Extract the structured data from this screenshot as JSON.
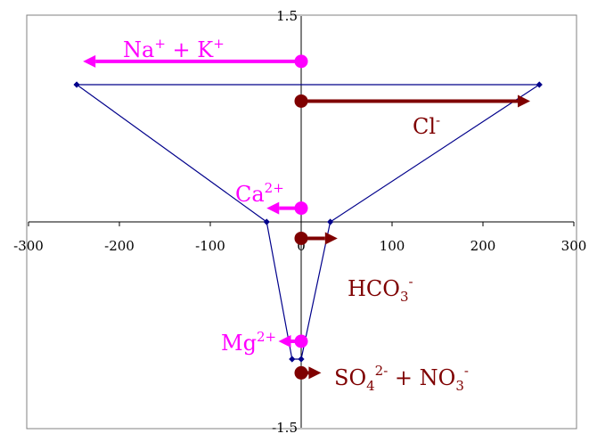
{
  "chart_data": {
    "type": "line",
    "title": "",
    "xlabel": "",
    "ylabel": "",
    "xlim": [
      -300,
      300
    ],
    "ylim": [
      -1.5,
      1.5
    ],
    "xticks": [
      "-300",
      "-200",
      "-100",
      "0",
      "100",
      "200",
      "300"
    ],
    "ytick_top": "1.5",
    "ytick_bottom": "-1.5",
    "grid": false,
    "polygon": {
      "color": "#00008B",
      "points": [
        {
          "x": -247,
          "y": 1.0
        },
        {
          "x": 262,
          "y": 1.0
        },
        {
          "x": 32,
          "y": 0.0
        },
        {
          "x": 0,
          "y": -1.0
        },
        {
          "x": -10,
          "y": -1.0
        },
        {
          "x": -38,
          "y": 0.0
        }
      ]
    },
    "cation_labels": [
      {
        "base": "Na",
        "sup": "+",
        "mid": " + K",
        "sup2": "+",
        "y": 1.17,
        "x_end": -240
      },
      {
        "base": "Ca",
        "sup": "2+",
        "mid": "",
        "sup2": "",
        "y": 0.1,
        "x_end": -38
      },
      {
        "base": "Mg",
        "sup": "2+",
        "mid": "",
        "sup2": "",
        "y": -0.87,
        "x_end": -25
      }
    ],
    "anion_labels": [
      {
        "base": "Cl",
        "sub": "",
        "sup": "-",
        "tail": "",
        "y": 0.88,
        "x_end": 252
      },
      {
        "base": "HCO",
        "sub": "3",
        "sup": "-",
        "tail": "",
        "y": -0.12,
        "x_end": 40
      },
      {
        "base": "SO",
        "sub": "4",
        "sup": "2-",
        "tail": " + NO",
        "sub2": "3",
        "sup2": "-",
        "y": -1.1,
        "x_end": 22
      }
    ],
    "colors": {
      "cation": "#FF00FF",
      "anion": "#7F0000",
      "axis": "#000000",
      "frame": "#808080"
    }
  }
}
